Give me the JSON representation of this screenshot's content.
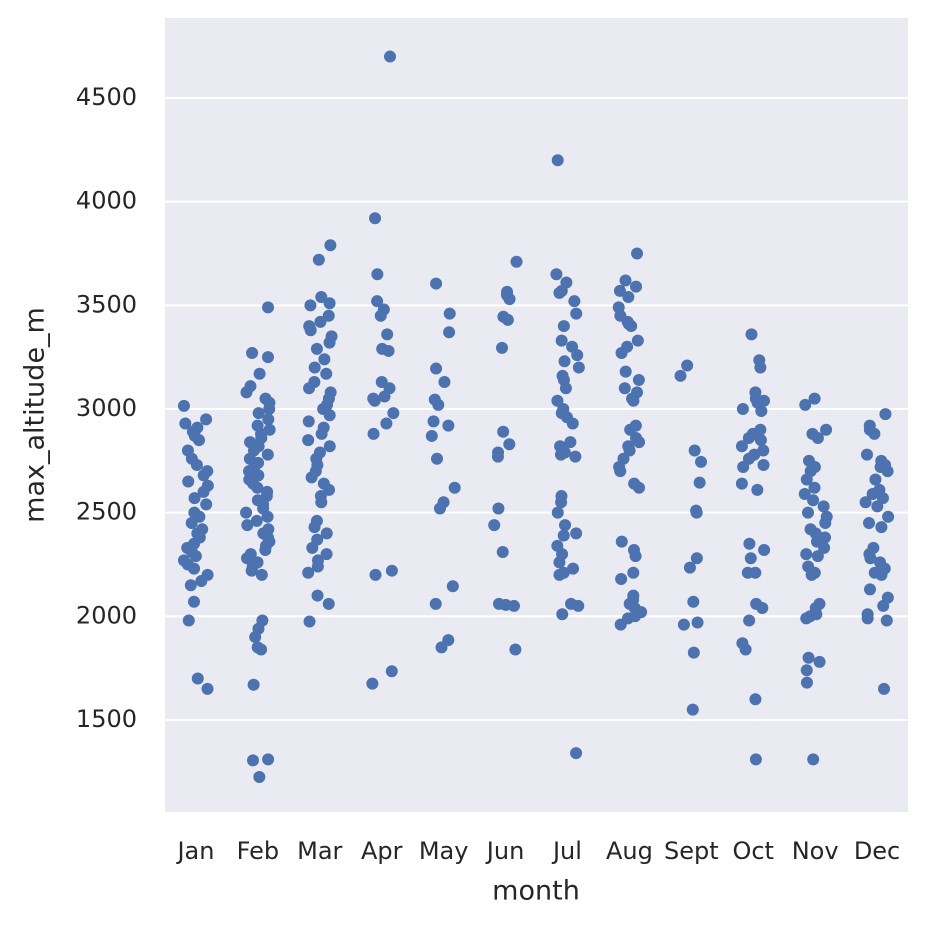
{
  "chart_data": {
    "type": "strip",
    "x_label": "month",
    "y_label": "max_altitude_m",
    "categories": [
      "Jan",
      "Feb",
      "Mar",
      "Apr",
      "May",
      "Jun",
      "Jul",
      "Aug",
      "Sept",
      "Oct",
      "Nov",
      "Dec"
    ],
    "color": "#4c72b0",
    "ylim": [
      1056,
      4886
    ],
    "yticks": [
      1500,
      2000,
      2500,
      3000,
      3500,
      4000,
      4500
    ],
    "grid": true,
    "values": [
      [
        3015,
        2950,
        2930,
        2910,
        2890,
        2870,
        2850,
        2800,
        2760,
        2730,
        2700,
        2680,
        2650,
        2630,
        2600,
        2570,
        2540,
        2500,
        2480,
        2450,
        2420,
        2400,
        2380,
        2350,
        2330,
        2310,
        2290,
        2270,
        2250,
        2230,
        2200,
        2170,
        2150,
        2070,
        1980,
        1700,
        1650
      ],
      [
        3490,
        3270,
        3250,
        3170,
        3110,
        3080,
        3050,
        3030,
        3000,
        2980,
        2950,
        2920,
        2900,
        2880,
        2860,
        2840,
        2820,
        2800,
        2780,
        2760,
        2740,
        2720,
        2700,
        2680,
        2660,
        2640,
        2620,
        2600,
        2580,
        2560,
        2540,
        2520,
        2500,
        2480,
        2460,
        2440,
        2420,
        2400,
        2380,
        2360,
        2340,
        2320,
        2300,
        2280,
        2260,
        2240,
        2220,
        2200,
        1980,
        1940,
        1900,
        1850,
        1840,
        1670,
        1310,
        1305,
        1225
      ],
      [
        3790,
        3720,
        3540,
        3510,
        3500,
        3450,
        3420,
        3400,
        3380,
        3350,
        3320,
        3290,
        3240,
        3200,
        3170,
        3130,
        3100,
        3080,
        3050,
        3020,
        3000,
        2970,
        2940,
        2910,
        2880,
        2850,
        2820,
        2790,
        2760,
        2730,
        2700,
        2670,
        2640,
        2610,
        2580,
        2550,
        2460,
        2430,
        2400,
        2370,
        2330,
        2300,
        2270,
        2240,
        2210,
        2100,
        2060,
        1975
      ],
      [
        4700,
        3920,
        3650,
        3520,
        3480,
        3450,
        3360,
        3290,
        3280,
        3130,
        3100,
        3060,
        3050,
        3040,
        2980,
        2930,
        2880,
        2220,
        2200,
        1735,
        1675
      ],
      [
        3605,
        3460,
        3370,
        3195,
        3130,
        3045,
        3020,
        2940,
        2920,
        2870,
        2760,
        2620,
        2550,
        2520,
        2145,
        2060,
        1885,
        1850
      ],
      [
        3710,
        3565,
        3550,
        3530,
        3445,
        3430,
        3295,
        2890,
        2830,
        2790,
        2770,
        2520,
        2440,
        2310,
        2060,
        2055,
        2050,
        1840
      ],
      [
        4200,
        3650,
        3610,
        3570,
        3560,
        3520,
        3460,
        3400,
        3330,
        3300,
        3260,
        3230,
        3200,
        3160,
        3140,
        3100,
        3040,
        3000,
        2980,
        2960,
        2930,
        2840,
        2820,
        2790,
        2780,
        2770,
        2580,
        2550,
        2500,
        2440,
        2400,
        2390,
        2340,
        2300,
        2260,
        2230,
        2210,
        2200,
        2060,
        2050,
        2010,
        1340
      ],
      [
        3750,
        3620,
        3590,
        3570,
        3540,
        3490,
        3450,
        3420,
        3410,
        3400,
        3330,
        3300,
        3270,
        3180,
        3140,
        3100,
        3080,
        3050,
        3040,
        2920,
        2900,
        2860,
        2840,
        2820,
        2800,
        2760,
        2720,
        2700,
        2640,
        2620,
        2360,
        2320,
        2290,
        2210,
        2180,
        2100,
        2080,
        2060,
        2040,
        2020,
        2000,
        1990,
        1960
      ],
      [
        3210,
        3160,
        2800,
        2745,
        2645,
        2510,
        2500,
        2280,
        2235,
        2070,
        1970,
        1960,
        1825,
        1550
      ],
      [
        3360,
        3235,
        3200,
        3080,
        3050,
        3040,
        3030,
        3000,
        2990,
        2900,
        2880,
        2860,
        2850,
        2820,
        2800,
        2780,
        2760,
        2730,
        2720,
        2640,
        2610,
        2350,
        2320,
        2280,
        2210,
        2210,
        2060,
        2040,
        1980,
        1870,
        1840,
        1600,
        1310
      ],
      [
        3050,
        3020,
        2900,
        2880,
        2860,
        2750,
        2720,
        2700,
        2660,
        2620,
        2590,
        2560,
        2530,
        2500,
        2480,
        2450,
        2420,
        2400,
        2380,
        2360,
        2330,
        2300,
        2290,
        2240,
        2210,
        2200,
        2060,
        2040,
        2010,
        2000,
        1990,
        1800,
        1780,
        1740,
        1680,
        1310
      ],
      [
        2975,
        2920,
        2900,
        2880,
        2780,
        2750,
        2730,
        2720,
        2700,
        2660,
        2610,
        2590,
        2570,
        2550,
        2530,
        2480,
        2450,
        2430,
        2330,
        2300,
        2280,
        2260,
        2230,
        2210,
        2200,
        2130,
        2090,
        2050,
        2010,
        1990,
        1980,
        1650
      ]
    ]
  }
}
